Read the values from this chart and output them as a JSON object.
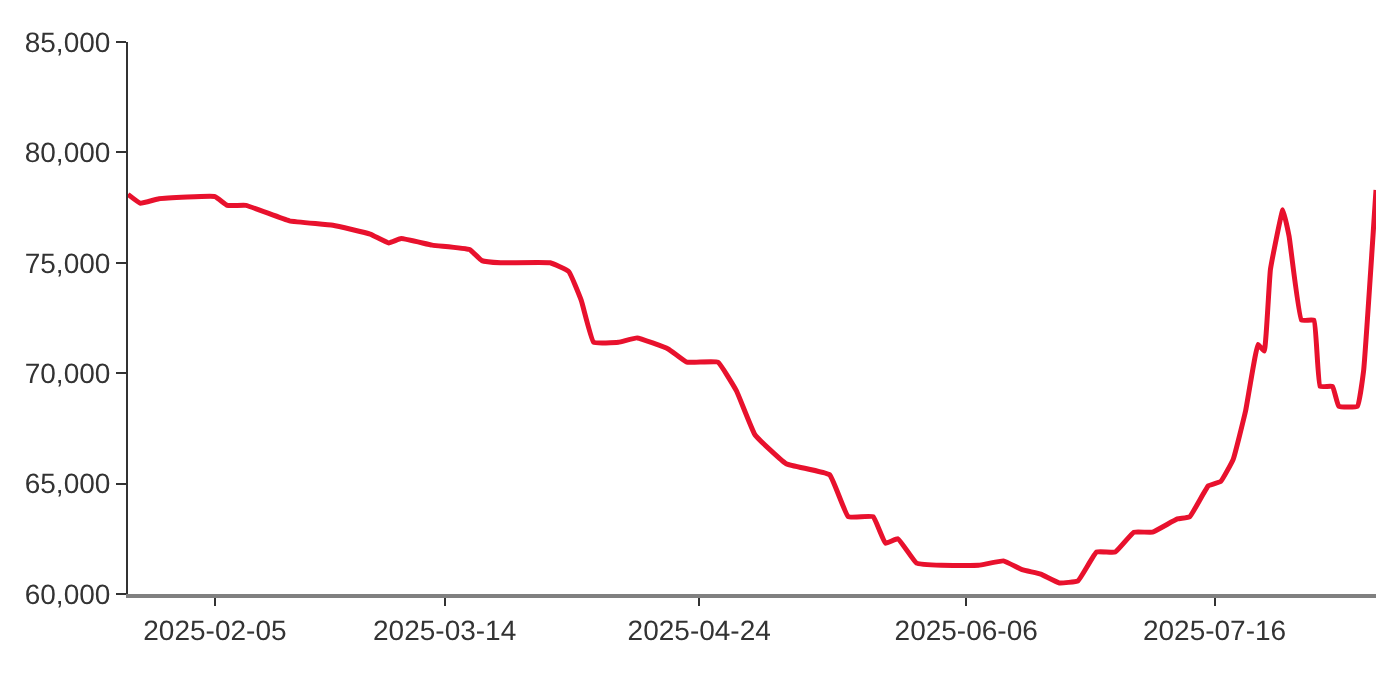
{
  "chart_data": {
    "type": "line",
    "x": [
      "2025-01-22",
      "2025-01-24",
      "2025-01-27",
      "2025-02-05",
      "2025-02-07",
      "2025-02-10",
      "2025-02-17",
      "2025-02-24",
      "2025-03-02",
      "2025-03-05",
      "2025-03-07",
      "2025-03-12",
      "2025-03-18",
      "2025-03-20",
      "2025-03-23",
      "2025-03-31",
      "2025-04-03",
      "2025-04-05",
      "2025-04-07",
      "2025-04-11",
      "2025-04-14",
      "2025-04-19",
      "2025-04-22",
      "2025-04-27",
      "2025-04-30",
      "2025-05-03",
      "2025-05-08",
      "2025-05-15",
      "2025-05-18",
      "2025-05-22",
      "2025-05-24",
      "2025-05-26",
      "2025-05-29",
      "2025-06-02",
      "2025-06-08",
      "2025-06-12",
      "2025-06-15",
      "2025-06-18",
      "2025-06-21",
      "2025-06-24",
      "2025-06-27",
      "2025-06-30",
      "2025-07-03",
      "2025-07-06",
      "2025-07-10",
      "2025-07-12",
      "2025-07-15",
      "2025-07-17",
      "2025-07-19",
      "2025-07-21",
      "2025-07-23",
      "2025-07-24",
      "2025-07-25",
      "2025-07-27",
      "2025-07-28",
      "2025-07-30",
      "2025-08-01",
      "2025-08-02",
      "2025-08-04",
      "2025-08-05",
      "2025-08-08",
      "2025-08-09",
      "2025-08-11"
    ],
    "series": [
      {
        "color": "#e8112d",
        "values": [
          78100,
          77700,
          77900,
          78000,
          77600,
          77600,
          76900,
          76700,
          76300,
          75900,
          76100,
          75800,
          75600,
          75100,
          75000,
          75000,
          74600,
          73300,
          71400,
          71400,
          71600,
          71100,
          70500,
          70500,
          69200,
          67200,
          65900,
          65400,
          63500,
          63500,
          62300,
          62500,
          61400,
          61300,
          61300,
          61500,
          61100,
          60900,
          60500,
          60600,
          61900,
          61900,
          62800,
          62800,
          63400,
          63500,
          64900,
          65100,
          66100,
          68300,
          71300,
          71000,
          74700,
          77400,
          76200,
          72400,
          72400,
          69400,
          69400,
          68500,
          68500,
          70100,
          78300
        ]
      }
    ],
    "xlim": [
      "2025-01-22",
      "2025-08-11"
    ],
    "xticks": [
      "2025-02-05",
      "2025-03-14",
      "2025-04-24",
      "2025-06-06",
      "2025-07-16"
    ],
    "ylim": [
      60000,
      85000
    ],
    "yticks": [
      {
        "value": 60000,
        "label": "60,000"
      },
      {
        "value": 65000,
        "label": "65,000"
      },
      {
        "value": 70000,
        "label": "70,000"
      },
      {
        "value": 75000,
        "label": "75,000"
      },
      {
        "value": 80000,
        "label": "80,000"
      },
      {
        "value": 85000,
        "label": "85,000"
      }
    ],
    "marker": "none",
    "line_style": "solid"
  }
}
